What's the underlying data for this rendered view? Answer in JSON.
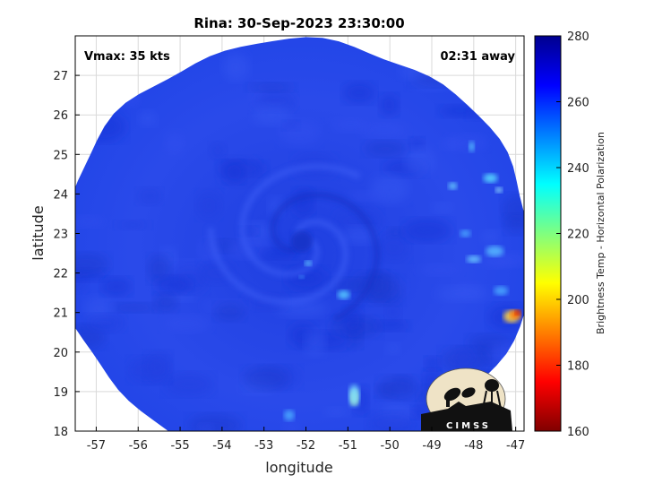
{
  "title": "Rina: 30-Sep-2023 23:30:00",
  "annotations": {
    "vmax": "Vmax: 35 kts",
    "time_away": "02:31 away"
  },
  "map": {
    "xlabel": "longitude",
    "ylabel": "latitude",
    "xlim": [
      -57.5,
      -46.8
    ],
    "ylim": [
      18,
      28
    ],
    "xticks": [
      -57,
      -56,
      -55,
      -54,
      -53,
      -52,
      -51,
      -50,
      -49,
      -48,
      -47
    ],
    "yticks": [
      18,
      19,
      20,
      21,
      22,
      23,
      24,
      25,
      26,
      27
    ],
    "grid": true,
    "storm_center": [
      -52.1,
      22.8
    ],
    "swath_center": [
      -52.2,
      22.5
    ],
    "swath_radius_deg": 5.5
  },
  "colorbar": {
    "label": "Brightness Temp - Horizontal Polarization",
    "min": 160,
    "max": 280,
    "ticks": [
      160,
      180,
      200,
      220,
      240,
      260,
      280
    ],
    "colormap": "jet"
  },
  "logo": {
    "text": "CIMSS"
  },
  "colors": {
    "background_ocean": "#2a45e6",
    "frame": "#000000"
  }
}
